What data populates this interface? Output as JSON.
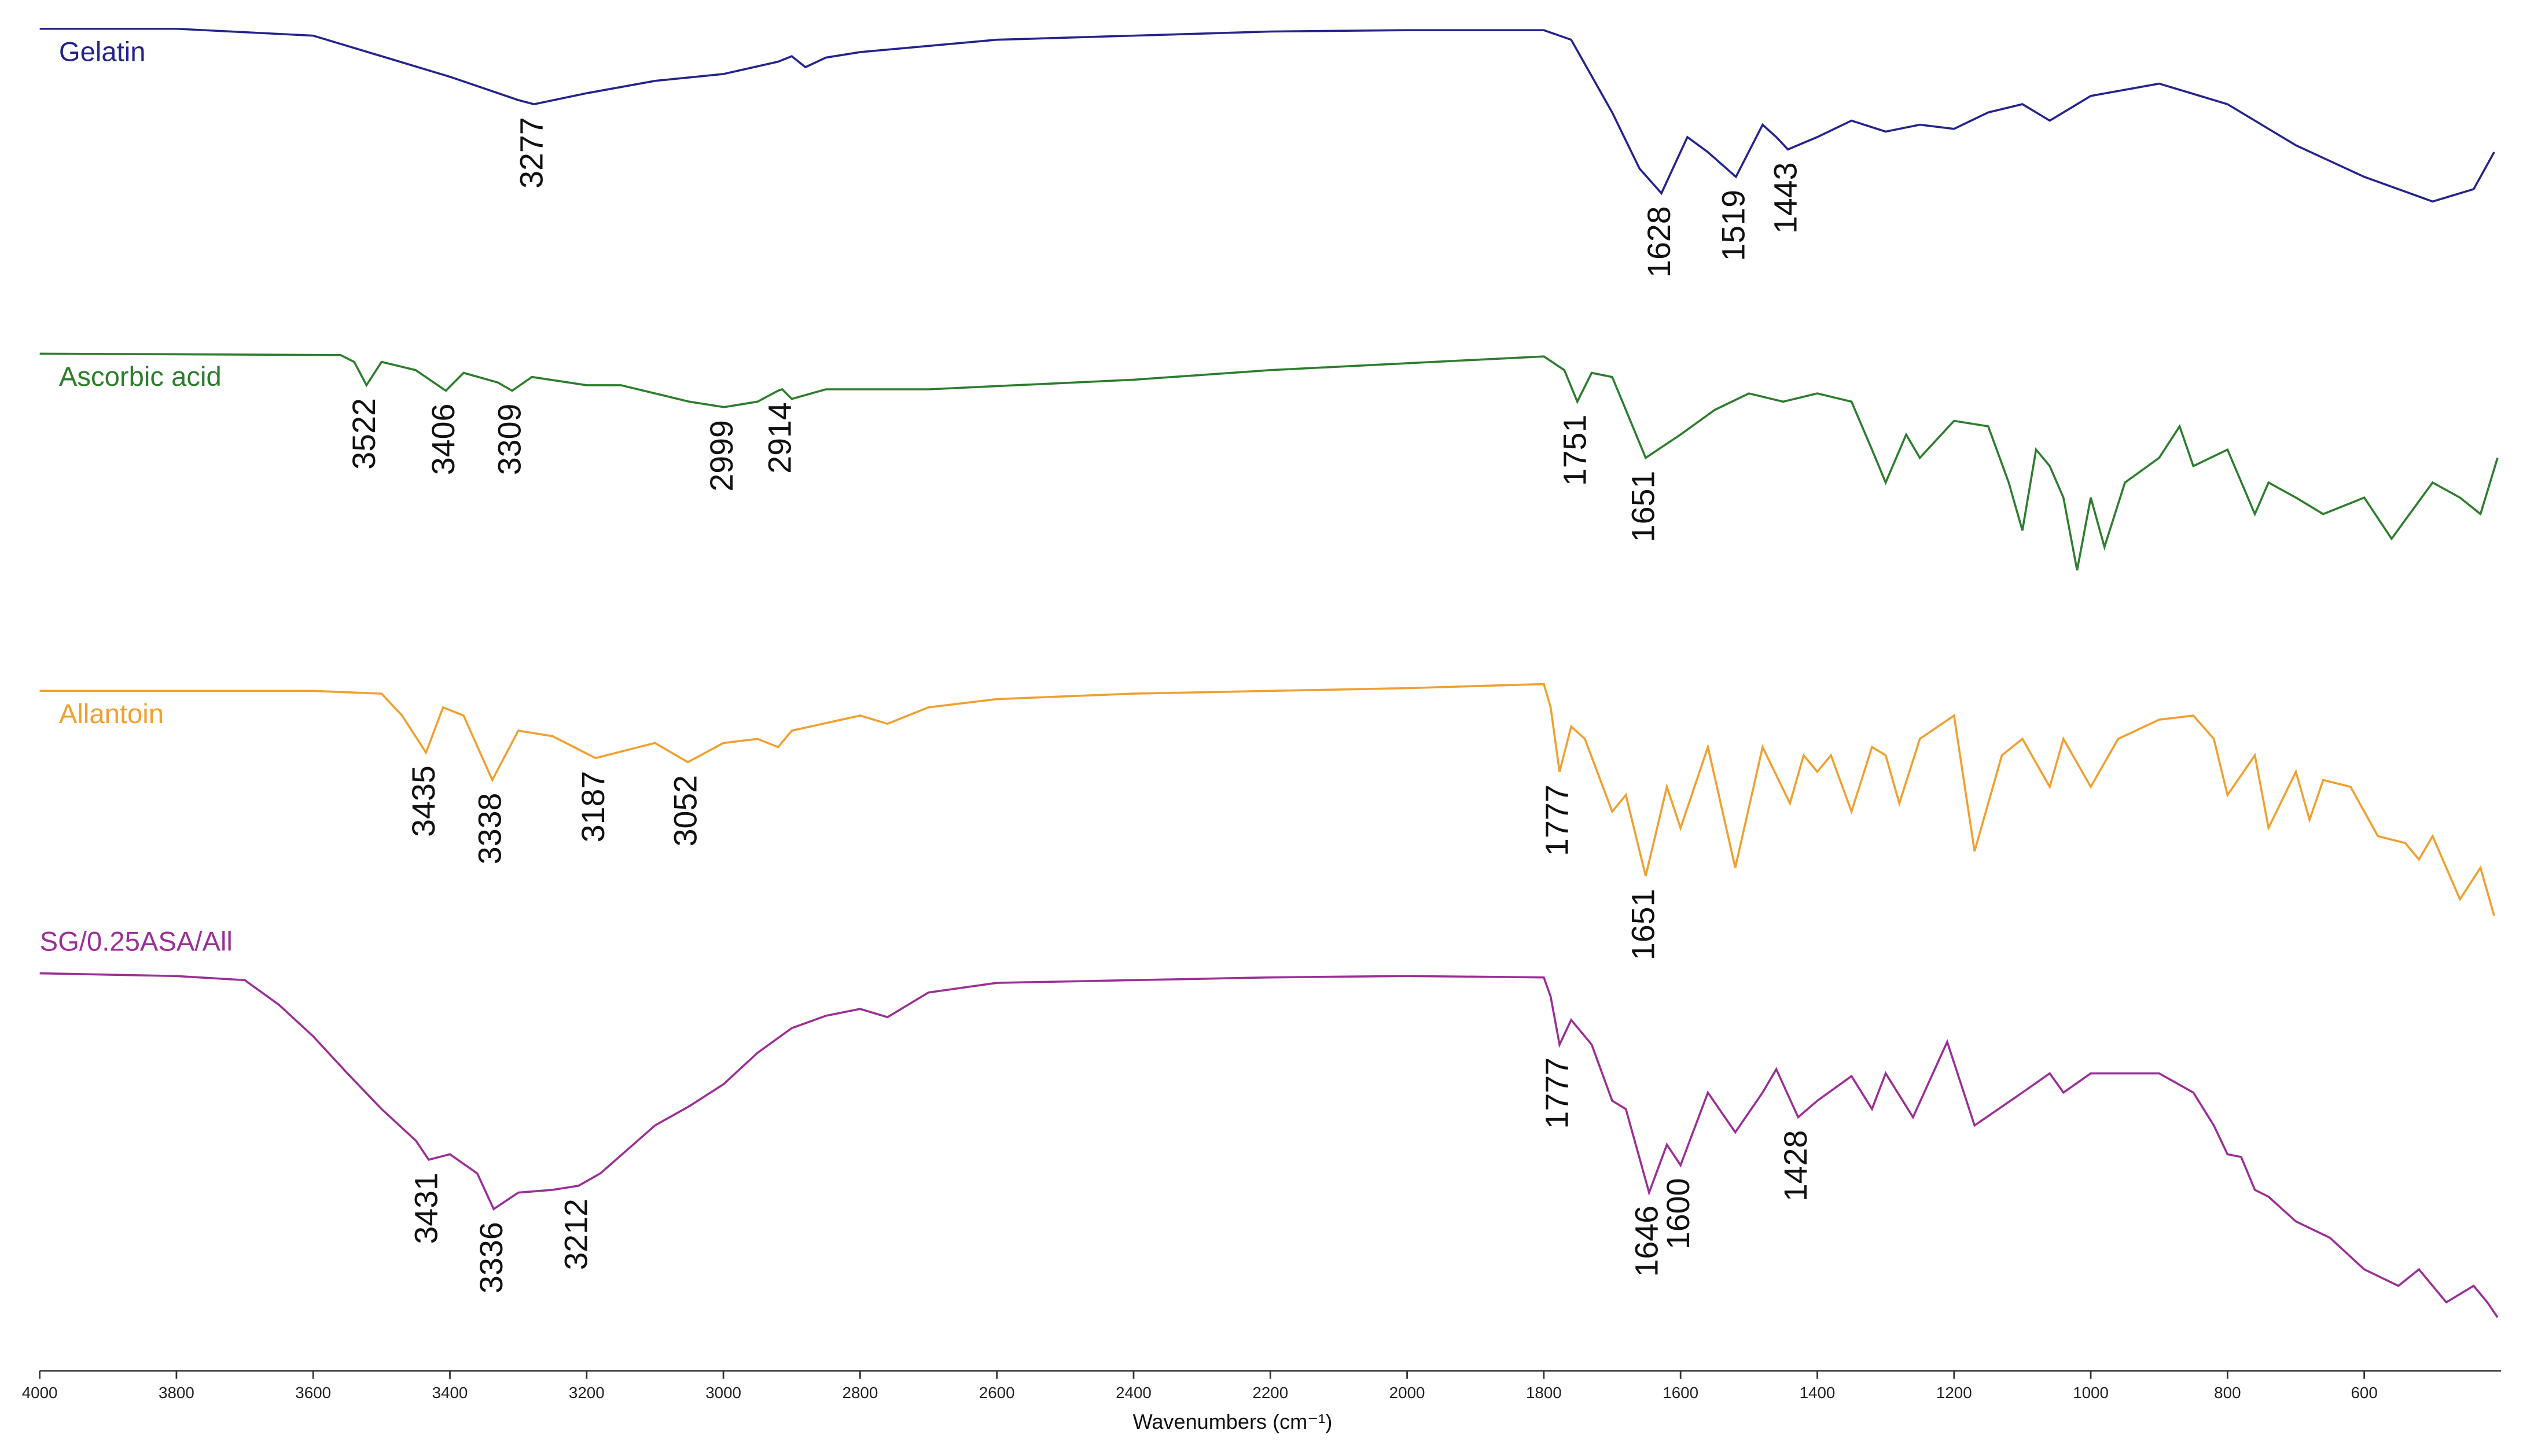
{
  "chart_data": {
    "type": "line",
    "xlabel": "Wavenumbers (cm⁻¹)",
    "xlim": [
      4000,
      400
    ],
    "xticks": [
      4000,
      3800,
      3600,
      3400,
      3200,
      3000,
      2800,
      2600,
      2400,
      2200,
      2000,
      1800,
      1600,
      1400,
      1200,
      1000,
      800,
      600
    ],
    "ylim": [
      0,
      100
    ],
    "series": [
      {
        "name": "Gelatin",
        "color": "#24248c",
        "x": [
          4000,
          3800,
          3600,
          3500,
          3400,
          3300,
          3277,
          3200,
          3100,
          3000,
          2920,
          2900,
          2880,
          2850,
          2800,
          2600,
          2400,
          2200,
          2000,
          1800,
          1760,
          1700,
          1660,
          1628,
          1590,
          1560,
          1519,
          1480,
          1460,
          1443,
          1400,
          1350,
          1300,
          1250,
          1200,
          1150,
          1100,
          1060,
          1000,
          900,
          800,
          700,
          600,
          500,
          440,
          410
        ],
        "values": [
          97.9,
          97.9,
          97.4,
          95.9,
          94.4,
          92.7,
          92.4,
          93.2,
          94.1,
          94.6,
          95.5,
          95.9,
          95.1,
          95.8,
          96.2,
          97.1,
          97.4,
          97.7,
          97.8,
          97.8,
          97.1,
          91.8,
          87.7,
          85.9,
          90.0,
          88.9,
          87.1,
          90.9,
          90.0,
          89.1,
          90.0,
          91.2,
          90.4,
          90.9,
          90.6,
          91.8,
          92.4,
          91.2,
          93.0,
          93.9,
          92.4,
          89.4,
          87.1,
          85.3,
          86.2,
          88.9
        ],
        "peaks": [
          3277,
          1628,
          1519,
          1443
        ]
      },
      {
        "name": "Ascorbic acid",
        "color": "#2e7d2e",
        "x": [
          4000,
          3560,
          3540,
          3522,
          3500,
          3450,
          3406,
          3380,
          3330,
          3309,
          3280,
          3200,
          3150,
          3050,
          2999,
          2950,
          2920,
          2914,
          2900,
          2850,
          2700,
          2400,
          2200,
          2000,
          1800,
          1770,
          1751,
          1730,
          1700,
          1680,
          1651,
          1600,
          1550,
          1500,
          1450,
          1400,
          1350,
          1320,
          1300,
          1270,
          1250,
          1200,
          1150,
          1120,
          1100,
          1080,
          1060,
          1040,
          1020,
          1000,
          980,
          950,
          900,
          870,
          850,
          800,
          760,
          740,
          700,
          660,
          600,
          560,
          500,
          460,
          430,
          405
        ],
        "values": [
          74.2,
          74.1,
          73.6,
          71.9,
          73.6,
          73.0,
          71.5,
          72.8,
          72.1,
          71.5,
          72.5,
          71.9,
          71.9,
          70.7,
          70.3,
          70.7,
          71.5,
          71.6,
          70.9,
          71.6,
          71.6,
          72.3,
          73.0,
          73.5,
          74.0,
          73.0,
          70.7,
          72.8,
          72.5,
          70.1,
          66.6,
          68.3,
          70.1,
          71.3,
          70.7,
          71.3,
          70.7,
          67.2,
          64.8,
          68.3,
          66.6,
          69.3,
          68.9,
          64.8,
          61.3,
          67.2,
          66.0,
          63.7,
          58.4,
          63.7,
          60.1,
          64.8,
          66.6,
          68.9,
          66.0,
          67.2,
          62.5,
          64.8,
          63.7,
          62.5,
          63.7,
          60.7,
          64.8,
          63.7,
          62.5,
          66.6
        ],
        "peaks": [
          3522,
          3406,
          3309,
          2999,
          2914,
          1751,
          1651
        ]
      },
      {
        "name": "Allantoin",
        "color": "#f0a030",
        "x": [
          4000,
          3600,
          3500,
          3470,
          3435,
          3410,
          3380,
          3338,
          3300,
          3250,
          3187,
          3100,
          3052,
          3000,
          2950,
          2920,
          2900,
          2800,
          2760,
          2700,
          2600,
          2400,
          2200,
          2000,
          1800,
          1790,
          1777,
          1760,
          1740,
          1700,
          1680,
          1651,
          1620,
          1600,
          1560,
          1520,
          1480,
          1440,
          1420,
          1400,
          1380,
          1350,
          1320,
          1300,
          1280,
          1250,
          1200,
          1170,
          1130,
          1100,
          1060,
          1040,
          1000,
          960,
          900,
          850,
          820,
          800,
          760,
          740,
          700,
          680,
          660,
          620,
          580,
          540,
          520,
          500,
          460,
          430,
          410
        ],
        "values": [
          49.6,
          49.6,
          49.4,
          47.8,
          45.1,
          48.4,
          47.8,
          43.1,
          46.7,
          46.3,
          44.7,
          45.8,
          44.4,
          45.8,
          46.1,
          45.5,
          46.7,
          47.8,
          47.2,
          48.4,
          49.0,
          49.4,
          49.6,
          49.8,
          50.1,
          48.4,
          43.7,
          47.0,
          46.1,
          40.8,
          42.0,
          36.1,
          42.6,
          39.6,
          45.5,
          36.7,
          45.5,
          41.4,
          44.9,
          43.7,
          44.9,
          40.8,
          45.5,
          44.9,
          41.4,
          46.1,
          47.8,
          37.9,
          44.9,
          46.1,
          42.6,
          46.1,
          42.6,
          46.1,
          47.5,
          47.8,
          46.1,
          42.0,
          44.9,
          39.6,
          43.7,
          40.2,
          43.1,
          42.6,
          39.0,
          38.5,
          37.3,
          39.0,
          34.4,
          36.7,
          33.2
        ],
        "peaks": [
          3435,
          3338,
          3187,
          3052,
          1777,
          1651
        ]
      },
      {
        "name": "SG/0.25ASA/All",
        "color": "#9b2f96",
        "x": [
          4000,
          3800,
          3700,
          3650,
          3600,
          3550,
          3500,
          3450,
          3431,
          3400,
          3360,
          3336,
          3300,
          3250,
          3212,
          3180,
          3100,
          3050,
          3000,
          2950,
          2900,
          2850,
          2800,
          2760,
          2700,
          2600,
          2400,
          2200,
          2000,
          1800,
          1790,
          1777,
          1760,
          1730,
          1700,
          1680,
          1646,
          1620,
          1600,
          1560,
          1520,
          1480,
          1460,
          1428,
          1400,
          1350,
          1320,
          1300,
          1260,
          1210,
          1170,
          1100,
          1060,
          1040,
          1000,
          960,
          900,
          850,
          820,
          800,
          780,
          760,
          740,
          700,
          650,
          600,
          550,
          520,
          480,
          440,
          420,
          405
        ],
        "values": [
          29.0,
          28.8,
          28.5,
          26.7,
          24.4,
          21.7,
          19.1,
          16.8,
          15.4,
          15.8,
          14.4,
          11.8,
          13.0,
          13.2,
          13.5,
          14.4,
          17.9,
          19.3,
          20.9,
          23.2,
          25.0,
          25.9,
          26.4,
          25.8,
          27.6,
          28.3,
          28.5,
          28.7,
          28.8,
          28.7,
          27.3,
          23.8,
          25.6,
          23.8,
          19.7,
          19.1,
          13.0,
          16.5,
          15.0,
          20.3,
          17.4,
          20.3,
          22.0,
          18.5,
          19.7,
          21.5,
          19.1,
          21.7,
          18.5,
          24.0,
          17.9,
          20.3,
          21.7,
          20.3,
          21.7,
          21.7,
          21.7,
          20.3,
          17.9,
          15.8,
          15.6,
          13.2,
          12.7,
          10.9,
          9.7,
          7.4,
          6.2,
          7.4,
          5.0,
          6.2,
          5.0,
          3.9
        ],
        "peaks": [
          3431,
          3336,
          3212,
          1777,
          1646,
          1600,
          1428
        ]
      }
    ]
  }
}
